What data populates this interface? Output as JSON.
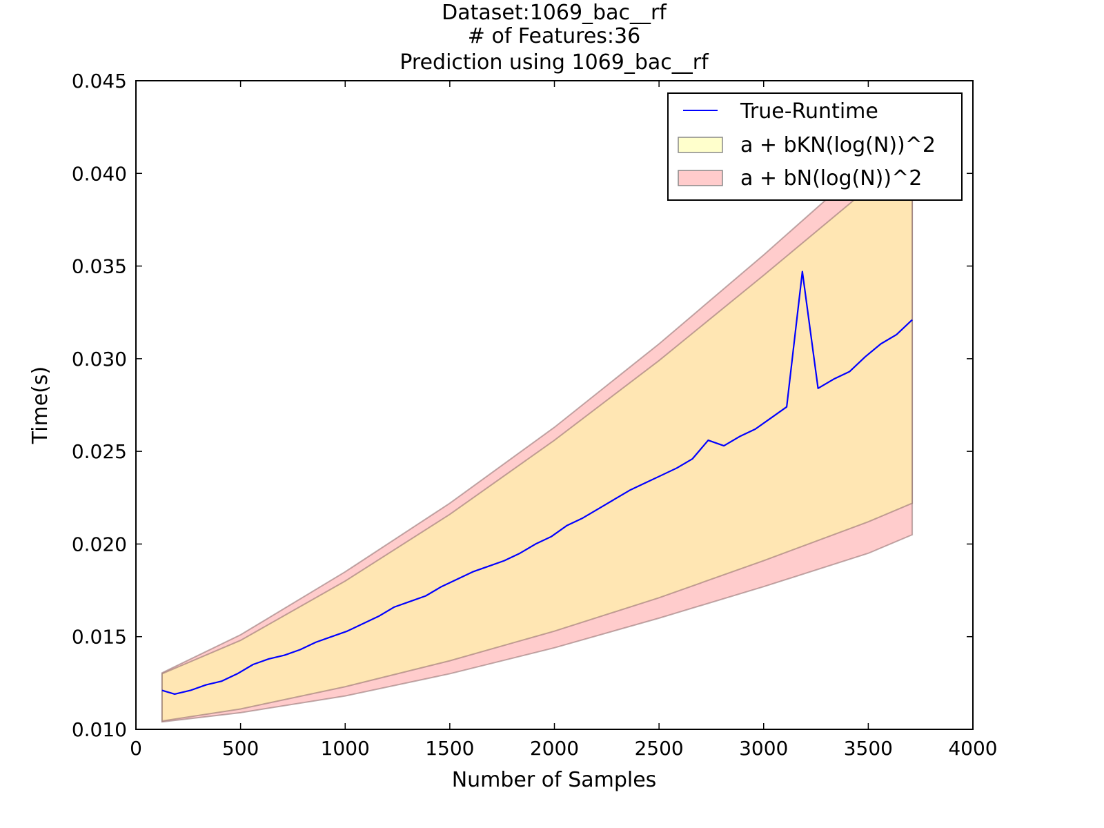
{
  "chart_data": {
    "type": "line",
    "title_lines": [
      "Dataset:1069_bac__rf",
      "# of Features:36",
      "Prediction using 1069_bac__rf"
    ],
    "xlabel": "Number of Samples",
    "ylabel": "Time(s)",
    "xlim": [
      0,
      4000
    ],
    "ylim": [
      0.01,
      0.045
    ],
    "xticks": [
      0,
      500,
      1000,
      1500,
      2000,
      2500,
      3000,
      3500,
      4000
    ],
    "xtick_labels": [
      "0",
      "500",
      "1000",
      "1500",
      "2000",
      "2500",
      "3000",
      "3500",
      "4000"
    ],
    "yticks": [
      0.01,
      0.015,
      0.02,
      0.025,
      0.03,
      0.035,
      0.04,
      0.045
    ],
    "ytick_labels": [
      "0.010",
      "0.015",
      "0.020",
      "0.025",
      "0.030",
      "0.035",
      "0.040",
      "0.045"
    ],
    "grid": false,
    "legend_position": "top-right",
    "series": [
      {
        "name": "True-Runtime",
        "kind": "line",
        "color": "#0000ff",
        "x": [
          125,
          185,
          260,
          335,
          410,
          485,
          560,
          635,
          710,
          785,
          860,
          935,
          1010,
          1085,
          1160,
          1235,
          1310,
          1385,
          1460,
          1535,
          1610,
          1685,
          1760,
          1835,
          1910,
          1985,
          2060,
          2135,
          2210,
          2285,
          2360,
          2435,
          2510,
          2585,
          2660,
          2735,
          2810,
          2885,
          2960,
          3035,
          3110,
          3185,
          3260,
          3335,
          3410,
          3485,
          3560,
          3635,
          3710
        ],
        "y": [
          0.0121,
          0.0119,
          0.0121,
          0.0124,
          0.0126,
          0.013,
          0.0135,
          0.0138,
          0.014,
          0.0143,
          0.0147,
          0.015,
          0.0153,
          0.0157,
          0.0161,
          0.0166,
          0.0169,
          0.0172,
          0.0177,
          0.0181,
          0.0185,
          0.0188,
          0.0191,
          0.0195,
          0.02,
          0.0204,
          0.021,
          0.0214,
          0.0219,
          0.0224,
          0.0229,
          0.0233,
          0.0237,
          0.0241,
          0.0246,
          0.0256,
          0.0253,
          0.0258,
          0.0262,
          0.0268,
          0.0274,
          0.0347,
          0.0284,
          0.0289,
          0.0293,
          0.0301,
          0.0308,
          0.0313,
          0.0321
        ]
      },
      {
        "name": "a + bKN(log(N))^2",
        "kind": "band",
        "color": "#ffff99",
        "x": [
          125,
          500,
          1000,
          1500,
          2000,
          2500,
          3000,
          3500,
          3710
        ],
        "lower": [
          0.01045,
          0.0111,
          0.0123,
          0.0137,
          0.0153,
          0.0171,
          0.0191,
          0.0212,
          0.0222
        ],
        "upper": [
          0.013,
          0.0148,
          0.018,
          0.0216,
          0.0256,
          0.0299,
          0.0345,
          0.0392,
          0.0412
        ]
      },
      {
        "name": "a + bN(log(N))^2",
        "kind": "band",
        "color": "#ff9999",
        "x": [
          125,
          500,
          1000,
          1500,
          2000,
          2500,
          3000,
          3500,
          3710
        ],
        "lower": [
          0.0104,
          0.0109,
          0.0118,
          0.013,
          0.0144,
          0.016,
          0.0177,
          0.0195,
          0.0205
        ],
        "upper": [
          0.01305,
          0.0151,
          0.0185,
          0.0222,
          0.0263,
          0.0308,
          0.0356,
          0.0406,
          0.0428
        ]
      }
    ]
  }
}
